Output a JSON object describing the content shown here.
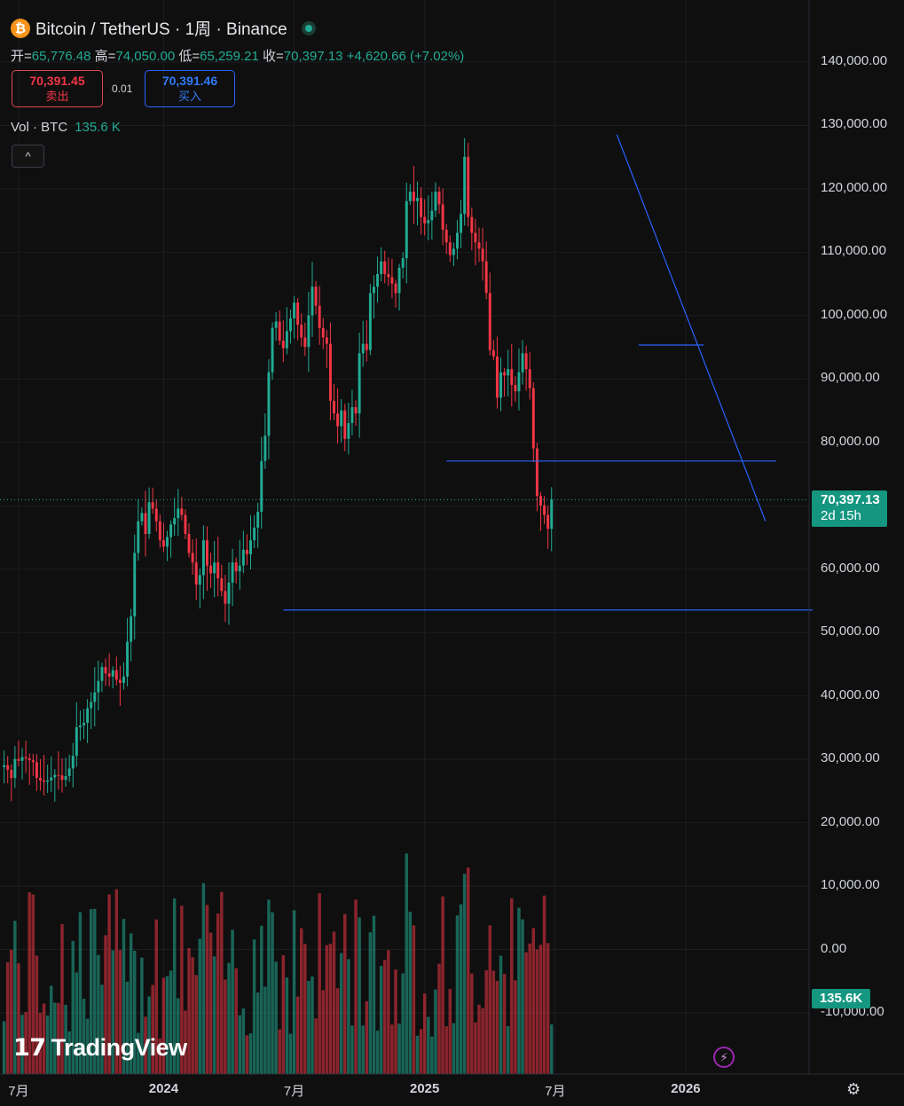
{
  "header": {
    "symbol": "Bitcoin / TetherUS · 1周 · Binance",
    "coin_glyph": "₿",
    "ohlc": {
      "open_label": "开=",
      "open": "65,776.48",
      "high_label": "高=",
      "high": "74,050.00",
      "low_label": "低=",
      "low": "65,259.21",
      "close_label": "收=",
      "close": "70,397.13",
      "change": "+4,620.66 (+7.02%)"
    },
    "sell": {
      "price": "70,391.45",
      "label": "卖出"
    },
    "spread": "0.01",
    "buy": {
      "price": "70,391.46",
      "label": "买入"
    },
    "volume_label": "Vol · BTC",
    "volume_value": "135.6 K",
    "collapse_glyph": "^"
  },
  "price_tag": {
    "price": "70,397.13",
    "countdown": "2d 15h"
  },
  "volume_tag": "135.6K",
  "brand": "TradingView",
  "colors": {
    "up": "#22ab94",
    "down": "#f23645",
    "line": "#2962ff",
    "bg": "#0f0f0f"
  },
  "icons": {
    "settings": "gear-icon",
    "replay": "bolt-icon"
  },
  "chart_data": {
    "type": "candlestick",
    "title": "Bitcoin / TetherUS · 1周 · Binance",
    "interval": "1W",
    "y_tick_labels": [
      "140,000.00",
      "130,000.00",
      "120,000.00",
      "110,000.00",
      "100,000.00",
      "90,000.00",
      "80,000.00",
      "70,000.00",
      "60,000.00",
      "50,000.00",
      "40,000.00",
      "30,000.00",
      "20,000.00",
      "10,000.00",
      "0.00",
      "-10,000.00"
    ],
    "y_ticks": [
      140000,
      130000,
      120000,
      110000,
      100000,
      90000,
      80000,
      70000,
      60000,
      50000,
      40000,
      30000,
      20000,
      10000,
      0,
      -10000
    ],
    "x_tick_labels": [
      "7月",
      "2024",
      "7月",
      "2025",
      "7月",
      "2026"
    ],
    "x_ticks_week_index": [
      4,
      44,
      80,
      116,
      152,
      188
    ],
    "closes": [
      28500,
      27800,
      26500,
      29500,
      29200,
      29800,
      29600,
      29300,
      29000,
      26500,
      26100,
      25900,
      26100,
      26600,
      27000,
      26900,
      26200,
      26800,
      28000,
      30000,
      34500,
      34800,
      35200,
      37500,
      38500,
      40000,
      41800,
      44000,
      43000,
      42500,
      43500,
      42000,
      41500,
      42500,
      48000,
      52000,
      62000,
      67000,
      68300,
      65000,
      70000,
      69000,
      67000,
      64000,
      63000,
      64500,
      66500,
      67500,
      69000,
      68000,
      65000,
      62000,
      60500,
      57000,
      58500,
      64000,
      60000,
      58800,
      60500,
      58000,
      56000,
      54000,
      57300,
      60500,
      59100,
      60000,
      62500,
      61800,
      64000,
      66000,
      68500,
      76500,
      80500,
      90500,
      97500,
      98500,
      95500,
      94300,
      97000,
      99000,
      101500,
      98000,
      96000,
      94500,
      99500,
      104000,
      101000,
      97500,
      96000,
      95000,
      86000,
      84000,
      82000,
      84500,
      80000,
      82500,
      85000,
      84000,
      93500,
      95000,
      94000,
      103000,
      104000,
      106000,
      108000,
      106000,
      105500,
      104500,
      103000,
      107000,
      108500,
      117500,
      119000,
      117500,
      118000,
      115000,
      114000,
      114500,
      116000,
      119000,
      117000,
      113000,
      111000,
      109000,
      110000,
      112500,
      115500,
      124500,
      115000,
      112500,
      111000,
      110000,
      108000,
      103000,
      94000,
      93000,
      86500,
      90500,
      90000,
      91000,
      88500,
      87500,
      90500,
      93500,
      91000,
      88000,
      78500,
      71000,
      69500,
      68000,
      65800,
      70397
    ],
    "up_color": "#22ab94",
    "down_color": "#f23645",
    "last_price": 70397.13,
    "drawings": [
      {
        "type": "trendline",
        "from": {
          "week": 169,
          "price": 128000
        },
        "to": {
          "week": 210,
          "price": 67000
        }
      },
      {
        "type": "horizontal",
        "price": 76500,
        "from_week": 122,
        "to_week": 213
      },
      {
        "type": "horizontal",
        "price": 53000,
        "from_week": 77,
        "to_week": 223
      },
      {
        "type": "horizontal",
        "price": 94800,
        "from_week": 175,
        "to_week": 193
      }
    ],
    "volume_series": {
      "name": "Vol · BTC",
      "last": "135.6K"
    }
  }
}
